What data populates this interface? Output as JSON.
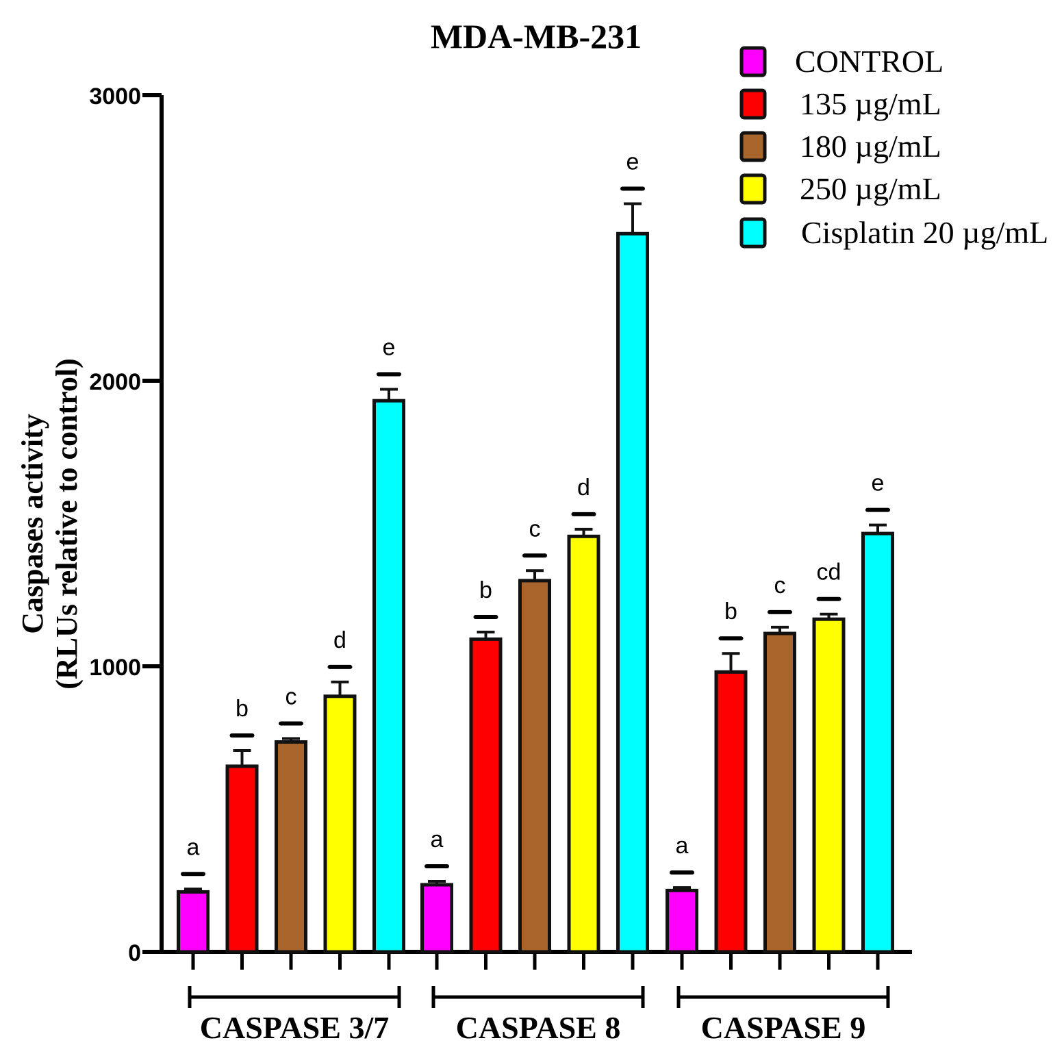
{
  "chart_data": {
    "type": "bar",
    "title": "MDA-MB-231",
    "ylabel_line1": "Caspases activity",
    "ylabel_line2": "(RLUs relative to control)",
    "xlabel": "",
    "ylim": [
      0,
      3000
    ],
    "yticks": [
      0,
      1000,
      2000,
      3000
    ],
    "categories": [
      "CASPASE 3/7",
      "CASPASE 8",
      "CASPASE 9"
    ],
    "series": [
      {
        "name": "CONTROL",
        "color": "#ff00ff",
        "values": [
          210,
          235,
          215
        ],
        "errors": [
          10,
          12,
          10
        ],
        "letters": [
          "a",
          "a",
          "a"
        ]
      },
      {
        "name": "135 µg/mL",
        "color": "#ff0000",
        "values": [
          650,
          1095,
          980
        ],
        "errors": [
          55,
          25,
          65
        ],
        "letters": [
          "b",
          "b",
          "b"
        ]
      },
      {
        "name": "180 µg/mL",
        "color": "#a8642a",
        "values": [
          735,
          1300,
          1115
        ],
        "errors": [
          12,
          35,
          22
        ],
        "letters": [
          "c",
          "c",
          "c"
        ]
      },
      {
        "name": "250 µg/mL",
        "color": "#ffff00",
        "values": [
          895,
          1455,
          1165
        ],
        "errors": [
          50,
          25,
          18
        ],
        "letters": [
          "d",
          "d",
          "cd"
        ]
      },
      {
        "name": "Cisplatin 20 µg/mL",
        "color": "#00ffff",
        "values": [
          1930,
          2515,
          1465
        ],
        "errors": [
          40,
          105,
          30
        ],
        "letters": [
          "e",
          "e",
          "e"
        ]
      }
    ],
    "legend_position": "top-right"
  }
}
